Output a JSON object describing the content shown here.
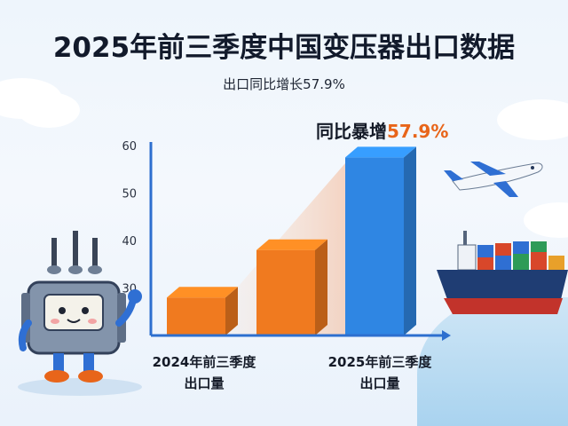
{
  "header": {
    "title": "2025年前三季度中国变压器出口数据",
    "subtitle": "出口同比增长57.9%"
  },
  "callout": {
    "prefix": "同比暴增",
    "pct": "57.9%"
  },
  "chart_data": {
    "type": "bar",
    "title": "2025年前三季度中国变压器出口数据",
    "subtitle": "出口同比增长57.9%",
    "x_tick_labels": [
      [
        "2024年前三季度",
        "出口量"
      ],
      [
        "2025年前三季度",
        "出口量"
      ]
    ],
    "bars": [
      {
        "value": 28,
        "color": "#f07a1f",
        "is_2025": false
      },
      {
        "value": 38,
        "color": "#f07a1f",
        "is_2025": false
      },
      {
        "value": 57.5,
        "color": "#2f86e3",
        "is_2025": true
      }
    ],
    "ylim": [
      20,
      60
    ],
    "yticks": [
      30,
      40,
      50,
      60
    ],
    "annotation": "同比暴增57.9%",
    "grid": false
  },
  "colors": {
    "orange": "#f07a1f",
    "blue": "#2f86e3",
    "axis": "#2d6fcf"
  },
  "illustrations": [
    "transformer-mascot",
    "airplane",
    "container-ship"
  ]
}
